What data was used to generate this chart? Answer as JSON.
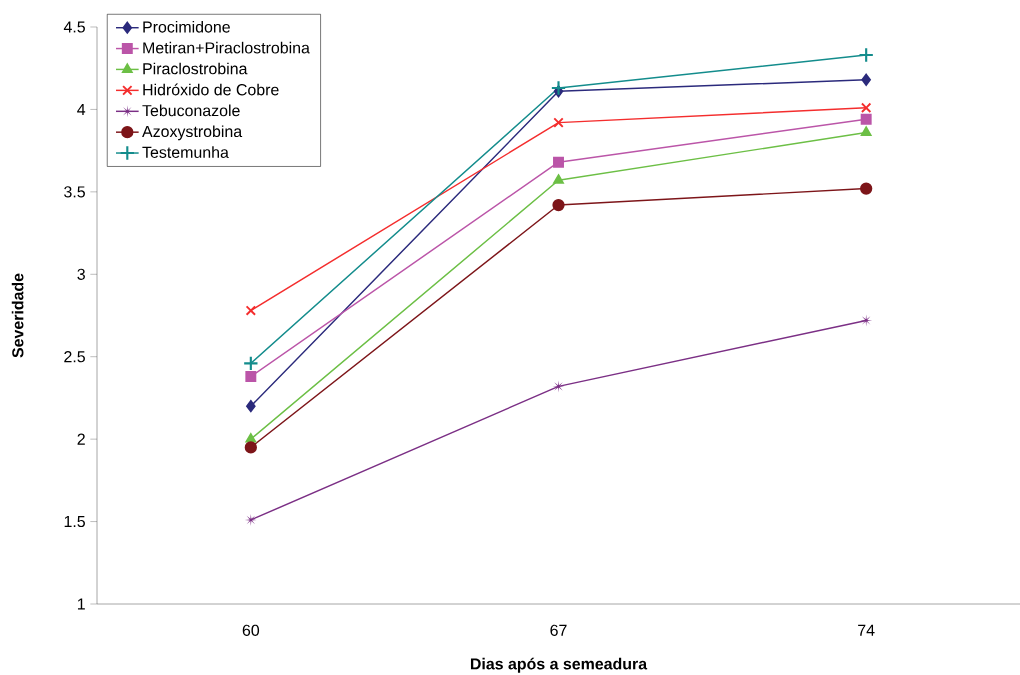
{
  "chart_data": {
    "type": "line",
    "xlabel": "Dias após a semeadura",
    "ylabel": "Severidade",
    "categories": [
      "60",
      "67",
      "74"
    ],
    "ylim": [
      1,
      4.5
    ],
    "yticks": [
      1,
      1.5,
      2,
      2.5,
      3,
      3.5,
      4,
      4.5
    ],
    "grid": false,
    "legend": "top left",
    "line_style": "solid",
    "series": [
      {
        "name": "Procimidone",
        "color": "#2b2a7c",
        "marker": "diamond",
        "values": [
          2.2,
          4.11,
          4.18
        ]
      },
      {
        "name": "Metiran+Piraclostrobina",
        "color": "#bb55a8",
        "marker": "square",
        "values": [
          2.38,
          3.68,
          3.94
        ]
      },
      {
        "name": "Piraclostrobina",
        "color": "#6cbf45",
        "marker": "triangle",
        "values": [
          2.0,
          3.57,
          3.86
        ]
      },
      {
        "name": "Hidróxido de Cobre",
        "color": "#f42d2d",
        "marker": "cross",
        "values": [
          2.78,
          3.92,
          4.01
        ]
      },
      {
        "name": "Tebuconazole",
        "color": "#7b2f85",
        "marker": "star",
        "values": [
          1.51,
          2.32,
          2.72
        ]
      },
      {
        "name": "Azoxystrobina",
        "color": "#7d1519",
        "marker": "circle",
        "values": [
          1.95,
          3.42,
          3.52
        ]
      },
      {
        "name": "Testemunha",
        "color": "#138c8c",
        "marker": "plus",
        "values": [
          2.46,
          4.13,
          4.33
        ]
      }
    ]
  }
}
